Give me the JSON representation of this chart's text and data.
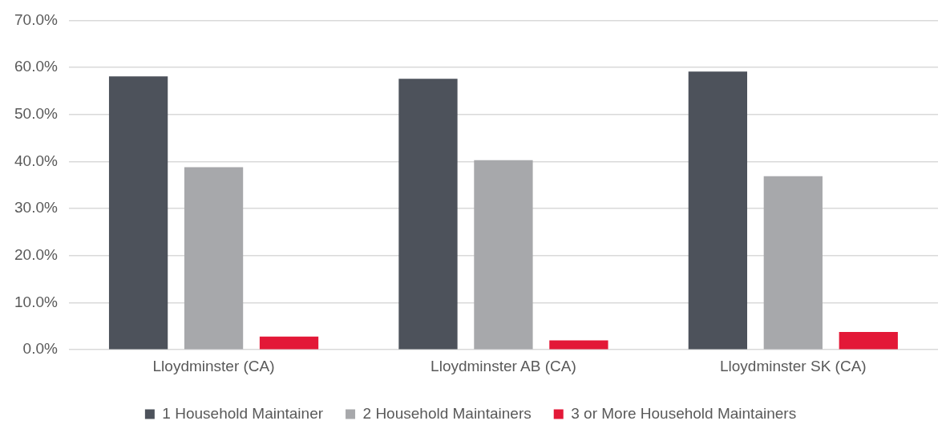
{
  "chart_data": {
    "type": "bar",
    "categories": [
      "Lloydminster (CA)",
      "Lloydminster AB (CA)",
      "Lloydminster SK (CA)"
    ],
    "series": [
      {
        "name": "1 Household Maintainer",
        "color": "#4d525b",
        "values": [
          58.1,
          57.6,
          59.1
        ]
      },
      {
        "name": "2 Household Maintainers",
        "color": "#a7a8ab",
        "values": [
          38.8,
          40.3,
          36.9
        ]
      },
      {
        "name": "3 or More Household Maintainers",
        "color": "#e31837",
        "values": [
          2.8,
          2.0,
          3.8
        ]
      }
    ],
    "ylim": [
      0,
      70
    ],
    "yticks": [
      {
        "value": 0,
        "label": "0.0%"
      },
      {
        "value": 10,
        "label": "10.0%"
      },
      {
        "value": 20,
        "label": "20.0%"
      },
      {
        "value": 30,
        "label": "30.0%"
      },
      {
        "value": 40,
        "label": "40.0%"
      },
      {
        "value": 50,
        "label": "50.0%"
      },
      {
        "value": 60,
        "label": "60.0%"
      },
      {
        "value": 70,
        "label": "70.0%"
      }
    ],
    "grid": "y",
    "legend": "bottom"
  }
}
